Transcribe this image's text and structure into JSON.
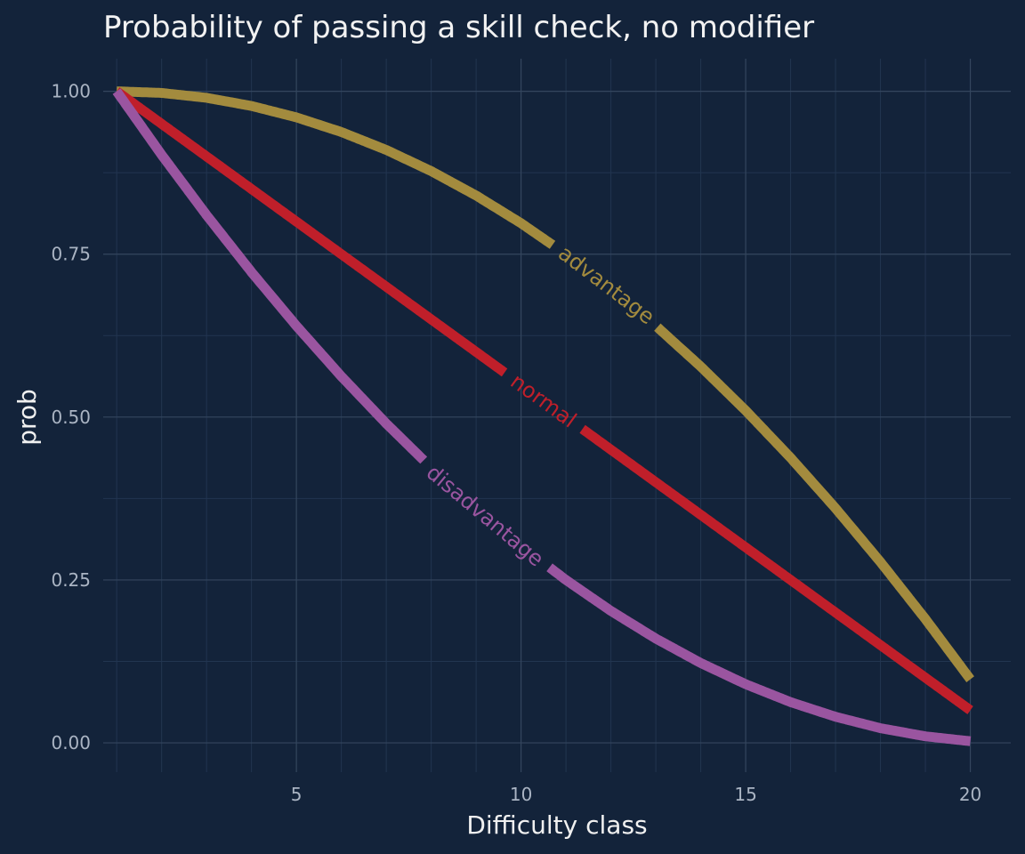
{
  "chart_data": {
    "type": "line",
    "title": "Probability of passing a skill check, no modifier",
    "xlabel": "Difficulty class",
    "ylabel": "prob",
    "xlim": [
      0.7,
      20.9
    ],
    "ylim": [
      -0.045,
      1.05
    ],
    "x_ticks": [
      5,
      10,
      15,
      20
    ],
    "y_ticks": [
      0,
      0.25,
      0.5,
      0.75,
      1.0
    ],
    "y_tick_labels": [
      "0.00",
      "0.25",
      "0.50",
      "0.75",
      "1.00"
    ],
    "grid": true,
    "legend": "direct labels on lines",
    "x": [
      1,
      2,
      3,
      4,
      5,
      6,
      7,
      8,
      9,
      10,
      11,
      12,
      13,
      14,
      15,
      16,
      17,
      18,
      19,
      20
    ],
    "series": [
      {
        "name": "advantage",
        "color": "#a38b3e",
        "label_x": 11.9,
        "values": [
          1.0,
          0.9975,
          0.99,
          0.9775,
          0.96,
          0.9375,
          0.91,
          0.8775,
          0.84,
          0.7975,
          0.75,
          0.6975,
          0.64,
          0.5775,
          0.51,
          0.4375,
          0.36,
          0.2775,
          0.19,
          0.0975
        ]
      },
      {
        "name": "normal",
        "color": "#c01f2a",
        "label_x": 10.5,
        "values": [
          1.0,
          0.95,
          0.9,
          0.85,
          0.8,
          0.75,
          0.7,
          0.65,
          0.6,
          0.55,
          0.5,
          0.45,
          0.4,
          0.35,
          0.3,
          0.25,
          0.2,
          0.15,
          0.1,
          0.05
        ]
      },
      {
        "name": "disadvantage",
        "color": "#9a55a0",
        "label_x": 9.2,
        "values": [
          1.0,
          0.9025,
          0.81,
          0.7225,
          0.64,
          0.5625,
          0.49,
          0.4225,
          0.36,
          0.3025,
          0.25,
          0.2025,
          0.16,
          0.1225,
          0.09,
          0.0625,
          0.04,
          0.0225,
          0.01,
          0.0025
        ]
      }
    ]
  }
}
